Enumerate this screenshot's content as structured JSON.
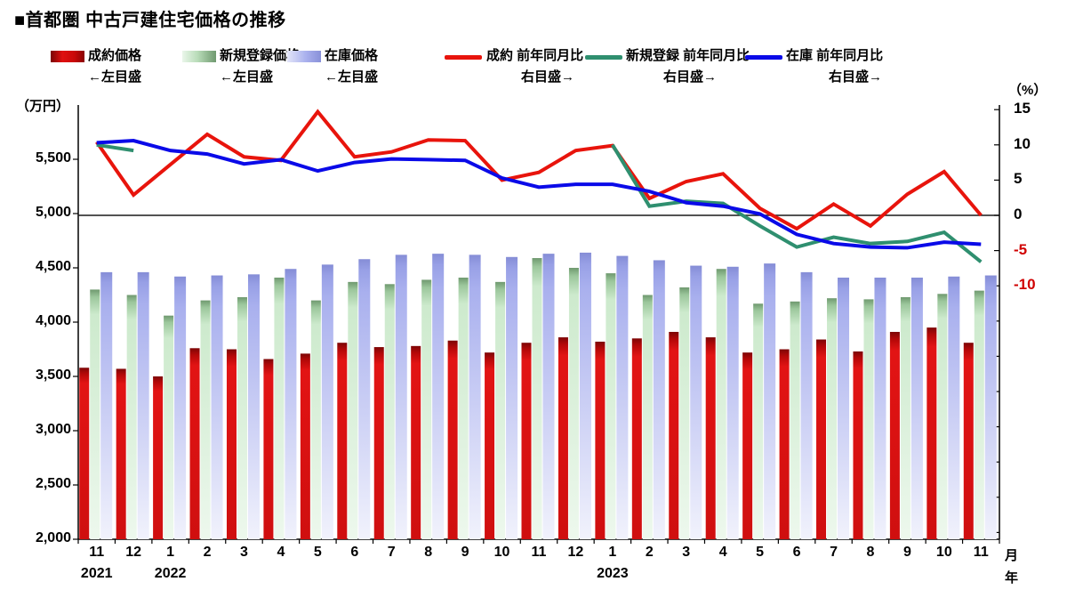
{
  "title": "■首都圏 中古戸建住宅価格の推移",
  "units": {
    "left": "（万円）",
    "right": "（%）",
    "x_month": "月",
    "x_year": "年"
  },
  "legend": {
    "items": [
      {
        "label": "成約価格",
        "scale": "←左目盛"
      },
      {
        "label": "新規登録価格",
        "scale": "←左目盛"
      },
      {
        "label": "在庫価格",
        "scale": "←左目盛"
      },
      {
        "label": "成約 前年同月比",
        "scale": "右目盛→"
      },
      {
        "label": "新規登録 前年同月比",
        "scale": "右目盛→"
      },
      {
        "label": "在庫 前年同月比",
        "scale": "右目盛→"
      }
    ]
  },
  "colors": {
    "line_contract": "#e8140c",
    "line_new_listing": "#2f8f6f",
    "line_inventory": "#0a0ae8",
    "axis": "#000000",
    "zero_line": "#1a1a1a",
    "negative_tick": "#d00000"
  },
  "chart_data": {
    "type": "bar+line combo (bars on left axis, YoY lines on right axis)",
    "x_months": [
      "11",
      "12",
      "1",
      "2",
      "3",
      "4",
      "5",
      "6",
      "7",
      "8",
      "9",
      "10",
      "11",
      "12",
      "1",
      "2",
      "3",
      "4",
      "5",
      "6",
      "7",
      "8",
      "9",
      "10",
      "11"
    ],
    "x_years": [
      {
        "index": 0,
        "label": "2021"
      },
      {
        "index": 2,
        "label": "2022"
      },
      {
        "index": 14,
        "label": "2023"
      }
    ],
    "left_axis": {
      "unit": "万円",
      "min": 2000,
      "max": 6000,
      "ticks": [
        5500,
        5000,
        4500,
        4000,
        3500,
        3000,
        2500,
        2000
      ]
    },
    "right_axis": {
      "unit": "%",
      "labeled_ticks": [
        15,
        10,
        5,
        0,
        -5,
        -10
      ],
      "zero_aligns_near_left_value": 5000
    },
    "bar_series": [
      {
        "key": "contract",
        "name": "成約価格",
        "values": [
          3580,
          3570,
          3500,
          3760,
          3750,
          3660,
          3710,
          3810,
          3770,
          3780,
          3830,
          3720,
          3810,
          3860,
          3820,
          3850,
          3910,
          3860,
          3720,
          3750,
          3840,
          3730,
          3910,
          3950,
          3810
        ]
      },
      {
        "key": "new_listing",
        "name": "新規登録価格",
        "values": [
          4300,
          4250,
          4060,
          4200,
          4230,
          4410,
          4200,
          4370,
          4350,
          4390,
          4410,
          4370,
          4590,
          4500,
          4450,
          4250,
          4320,
          4490,
          4170,
          4190,
          4220,
          4210,
          4230,
          4260,
          4290
        ]
      },
      {
        "key": "inventory",
        "name": "在庫価格",
        "values": [
          4460,
          4460,
          4420,
          4430,
          4440,
          4490,
          4530,
          4580,
          4620,
          4630,
          4620,
          4600,
          4630,
          4640,
          4610,
          4570,
          4520,
          4510,
          4540,
          4460,
          4410,
          4410,
          4410,
          4420,
          4430
        ]
      }
    ],
    "line_series": [
      {
        "key": "contract_yoy",
        "name": "成約 前年同月比",
        "values": [
          10.4,
          2.9,
          7.2,
          11.5,
          8.3,
          7.8,
          14.7,
          8.3,
          9.0,
          10.7,
          10.6,
          5.0,
          6.1,
          9.2,
          9.9,
          2.4,
          4.8,
          5.9,
          1.0,
          -1.9,
          1.6,
          -1.5,
          3.0,
          6.2,
          0.0
        ]
      },
      {
        "key": "new_listing_yoy",
        "name": "新規登録 前年同月比",
        "values": [
          10.0,
          9.2,
          null,
          null,
          null,
          null,
          null,
          null,
          null,
          null,
          null,
          null,
          null,
          null,
          10.0,
          1.3,
          2.0,
          1.7,
          -1.5,
          -4.5,
          -3.1,
          -4.0,
          -3.7,
          -2.4,
          -6.6
        ]
      },
      {
        "key": "inventory_yoy",
        "name": "在庫 前年同月比",
        "values": [
          10.3,
          10.6,
          9.2,
          8.7,
          7.3,
          7.9,
          6.3,
          7.5,
          8.0,
          7.9,
          7.8,
          5.3,
          4.0,
          4.4,
          4.4,
          3.4,
          1.8,
          1.3,
          0.2,
          -2.7,
          -4.0,
          -4.5,
          -4.6,
          -3.8,
          -4.1
        ]
      }
    ]
  }
}
